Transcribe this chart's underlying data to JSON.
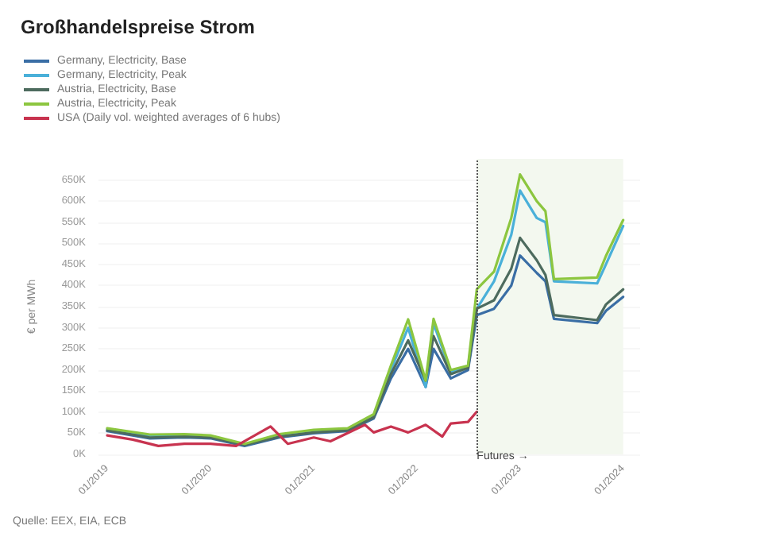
{
  "chart_data": {
    "type": "line",
    "title": "Großhandelspreise Strom",
    "ylabel": "€ per MWh",
    "x": [
      "2019-01",
      "2019-06",
      "2019-10",
      "2020-01",
      "2020-05",
      "2020-09",
      "2021-01",
      "2021-05",
      "2021-08",
      "2021-10",
      "2021-12",
      "2022-02",
      "2022-03",
      "2022-05",
      "2022-07",
      "2022-08",
      "2022-10",
      "2022-12",
      "2023-01",
      "2023-03",
      "2023-04",
      "2023-05",
      "2023-10",
      "2023-11",
      "2024-01"
    ],
    "series": [
      {
        "name": "Germany, Electricity, Base",
        "color": "#3a6ea5",
        "values": [
          55,
          38,
          40,
          38,
          20,
          40,
          50,
          55,
          85,
          180,
          250,
          160,
          250,
          180,
          200,
          330,
          345,
          400,
          471,
          430,
          410,
          321,
          311,
          340,
          373
        ]
      },
      {
        "name": "Germany, Electricity, Peak",
        "color": "#4ab0d9",
        "values": [
          60,
          45,
          45,
          42,
          22,
          45,
          55,
          60,
          90,
          200,
          300,
          160,
          310,
          195,
          210,
          345,
          410,
          520,
          625,
          560,
          550,
          410,
          405,
          450,
          541
        ]
      },
      {
        "name": "Austria, Electricity, Base",
        "color": "#4d6b5e",
        "values": [
          57,
          40,
          42,
          40,
          22,
          42,
          52,
          57,
          88,
          190,
          270,
          175,
          280,
          190,
          205,
          345,
          365,
          440,
          513,
          460,
          425,
          330,
          318,
          355,
          391
        ]
      },
      {
        "name": "Austria, Electricity, Peak",
        "color": "#8cc63f",
        "values": [
          62,
          47,
          48,
          45,
          25,
          48,
          58,
          62,
          95,
          210,
          320,
          175,
          321,
          200,
          210,
          391,
          433,
          560,
          663,
          600,
          576,
          415,
          419,
          470,
          555
        ]
      },
      {
        "name": "USA (Daily vol. weighted averages of 6 hubs)",
        "color": "#c8334f",
        "x": [
          "2019-01",
          "2019-04",
          "2019-07",
          "2019-10",
          "2020-01",
          "2020-04",
          "2020-08",
          "2020-10",
          "2021-01",
          "2021-03",
          "2021-07",
          "2021-08",
          "2021-10",
          "2021-12",
          "2022-02",
          "2022-04",
          "2022-05",
          "2022-07",
          "2022-08"
        ],
        "values": [
          45,
          35,
          20,
          25,
          25,
          20,
          66,
          25,
          40,
          31,
          70,
          52,
          66,
          52,
          70,
          42,
          73,
          77,
          101
        ]
      }
    ],
    "ylim": [
      0,
      700
    ],
    "yticks": [
      {
        "value": 0,
        "label": "0K"
      },
      {
        "value": 50,
        "label": "50K"
      },
      {
        "value": 100,
        "label": "100K"
      },
      {
        "value": 150,
        "label": "150K"
      },
      {
        "value": 200,
        "label": "200K"
      },
      {
        "value": 250,
        "label": "250K"
      },
      {
        "value": 300,
        "label": "300K"
      },
      {
        "value": 350,
        "label": "350K"
      },
      {
        "value": 400,
        "label": "400K"
      },
      {
        "value": 450,
        "label": "450K"
      },
      {
        "value": 500,
        "label": "500K"
      },
      {
        "value": 550,
        "label": "550K"
      },
      {
        "value": 600,
        "label": "600K"
      },
      {
        "value": 650,
        "label": "650K"
      }
    ],
    "xlim": [
      "2018-12",
      "2024-03"
    ],
    "xticks": [
      {
        "value": "2019-01",
        "label": "01/2019"
      },
      {
        "value": "2020-01",
        "label": "01/2020"
      },
      {
        "value": "2021-01",
        "label": "01/2021"
      },
      {
        "value": "2022-01",
        "label": "01/2022"
      },
      {
        "value": "2023-01",
        "label": "01/2023"
      },
      {
        "value": "2024-01",
        "label": "01/2024"
      }
    ],
    "ref_lines": [
      {
        "axis": "x",
        "value": "2022-08",
        "label": "Futures →",
        "line_style": "dotted",
        "color": "#555555"
      }
    ],
    "bands": [
      {
        "axis": "x",
        "from": "2022-08",
        "to": "2024-01",
        "color": "#f3f8ef"
      }
    ],
    "grid": "y",
    "legend": "top left",
    "marker": "none",
    "line_style": "solid",
    "annotations": [
      "Quelle: EEX, EIA, ECB"
    ]
  }
}
